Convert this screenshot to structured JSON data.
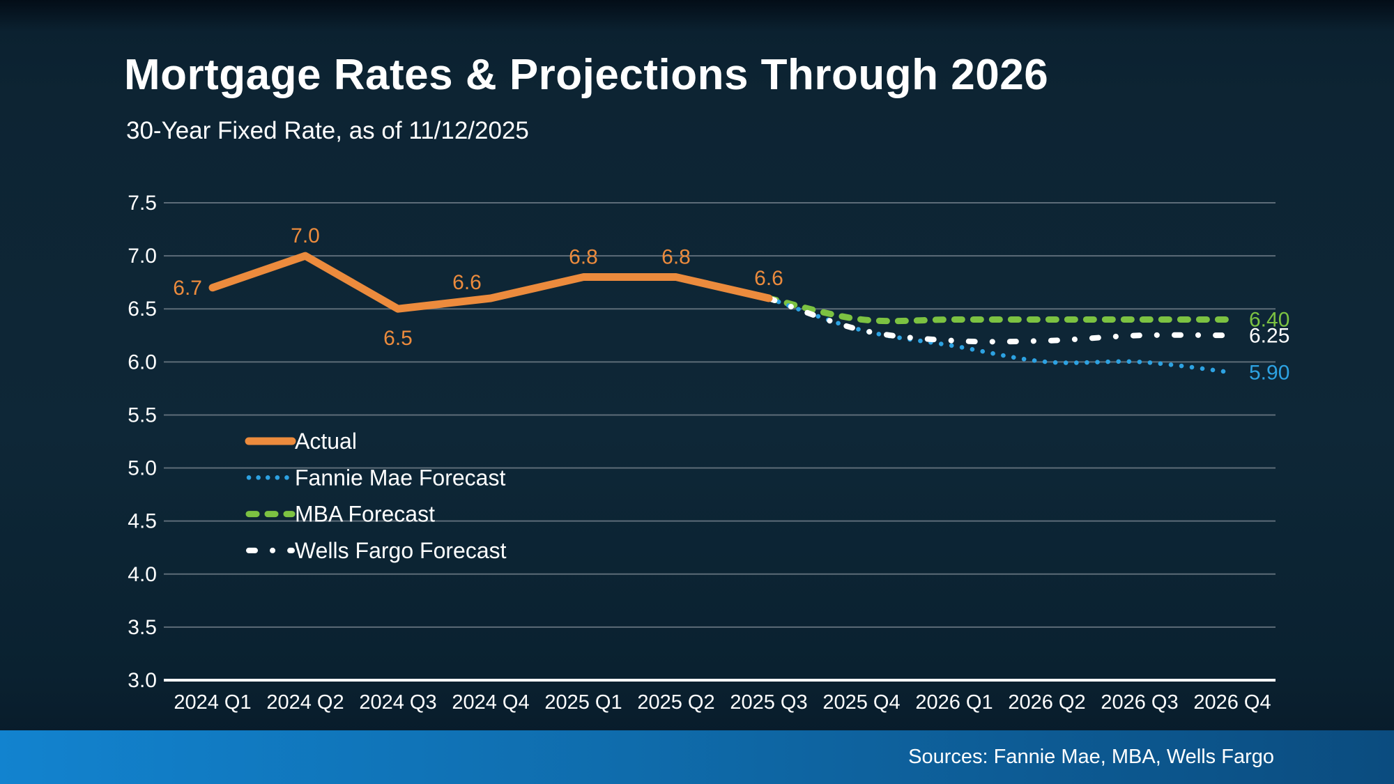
{
  "header": {
    "title": "Mortgage Rates & Projections Through 2026",
    "subtitle": "30-Year Fixed Rate, as of 11/12/2025"
  },
  "footer": {
    "sources": "Sources: Fannie Mae, MBA, Wells Fargo"
  },
  "colors": {
    "background": "#0d2433",
    "text": "#ffffff",
    "gridline": "#5d6c78",
    "axis_line": "#ffffff",
    "actual": "#ec8b3d",
    "fannie_mae": "#2da2e2",
    "mba": "#7cc242",
    "wells_fargo": "#ffffff",
    "footer_bar_left": "#1283cf",
    "footer_bar_right": "#0b4c7f"
  },
  "chart_data": {
    "type": "line",
    "categories": [
      "2024 Q1",
      "2024 Q2",
      "2024 Q3",
      "2024 Q4",
      "2025 Q1",
      "2025 Q2",
      "2025 Q3",
      "2025 Q4",
      "2026 Q1",
      "2026 Q2",
      "2026 Q3",
      "2026 Q4"
    ],
    "ylim": [
      3.0,
      7.5
    ],
    "ytick_step": 0.5,
    "yticks": [
      "7.5",
      "7.0",
      "6.5",
      "6.0",
      "5.5",
      "5.0",
      "4.5",
      "4.0",
      "3.5",
      "3.0"
    ],
    "grid": true,
    "legend_position": "middle-left",
    "series": [
      {
        "name": "Actual",
        "color": "#ec8b3d",
        "style": "solid",
        "x_start_index": 0,
        "values": [
          6.7,
          7.0,
          6.5,
          6.6,
          6.8,
          6.8,
          6.6
        ],
        "point_labels": [
          "6.7",
          "7.0",
          "6.5",
          "6.6",
          "6.8",
          "6.8",
          "6.6"
        ],
        "label_placement": [
          "left",
          "above",
          "below",
          "above-left",
          "above",
          "above",
          "above"
        ]
      },
      {
        "name": "Fannie Mae Forecast",
        "color": "#2da2e2",
        "style": "dotted",
        "x_start_index": 6,
        "values": [
          6.6,
          6.3,
          6.15,
          6.0,
          6.0,
          5.9
        ],
        "end_label": "5.90"
      },
      {
        "name": "MBA Forecast",
        "color": "#7cc242",
        "style": "dashed",
        "x_start_index": 6,
        "values": [
          6.6,
          6.4,
          6.4,
          6.4,
          6.4,
          6.4
        ],
        "end_label": "6.40"
      },
      {
        "name": "Wells Fargo Forecast",
        "color": "#ffffff",
        "style": "dashdot",
        "x_start_index": 6,
        "values": [
          6.6,
          6.3,
          6.2,
          6.2,
          6.25,
          6.25
        ],
        "end_label": "6.25"
      }
    ]
  }
}
